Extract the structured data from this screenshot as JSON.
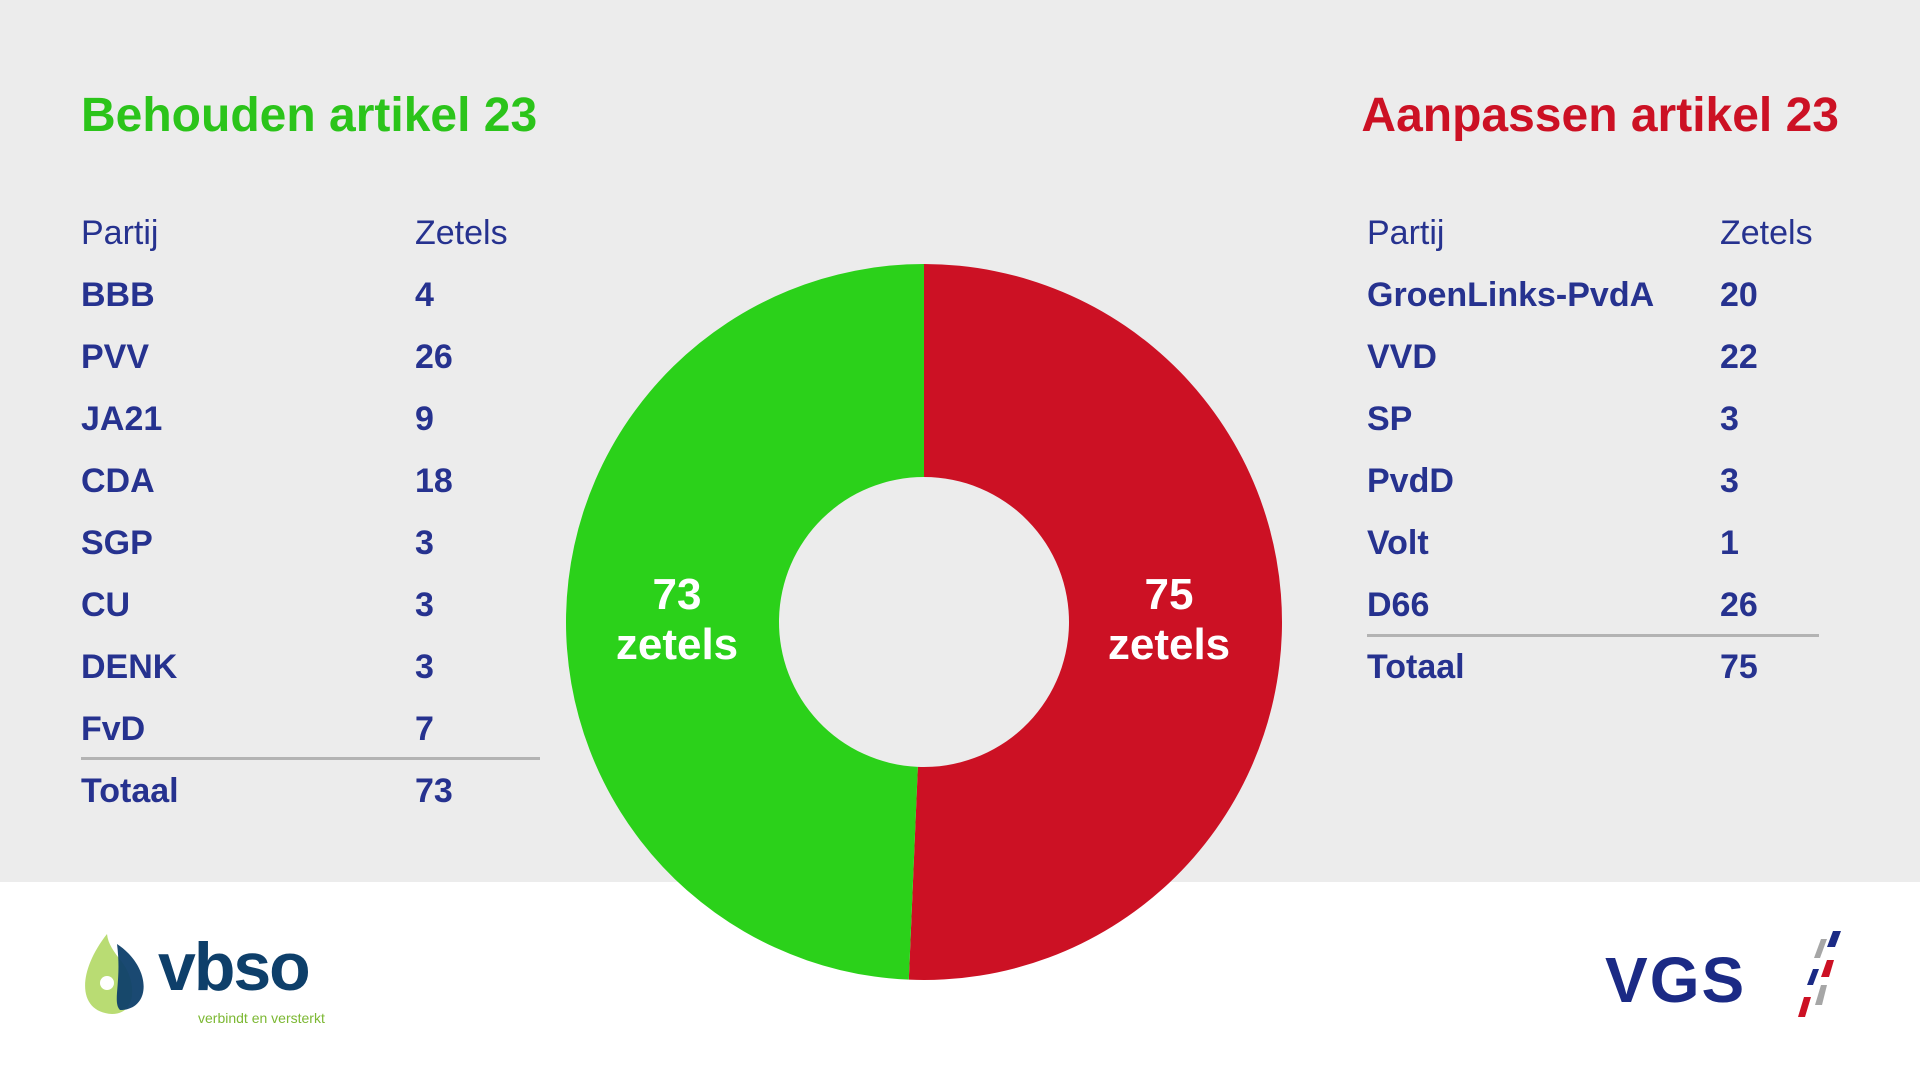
{
  "left": {
    "title": "Behouden artikel 23",
    "color": "#2bd11a",
    "header": {
      "party": "Partij",
      "seats": "Zetels"
    },
    "rows": [
      {
        "party": "BBB",
        "seats": "4"
      },
      {
        "party": "PVV",
        "seats": "26"
      },
      {
        "party": "JA21",
        "seats": "9"
      },
      {
        "party": "CDA",
        "seats": "18"
      },
      {
        "party": "SGP",
        "seats": "3"
      },
      {
        "party": "CU",
        "seats": "3"
      },
      {
        "party": "DENK",
        "seats": "3"
      },
      {
        "party": "FvD",
        "seats": "7"
      }
    ],
    "total": {
      "label": "Totaal",
      "seats": "73"
    }
  },
  "right": {
    "title": "Aanpassen artikel 23",
    "color": "#cc1124",
    "header": {
      "party": "Partij",
      "seats": "Zetels"
    },
    "rows": [
      {
        "party": "GroenLinks-PvdA",
        "seats": "20"
      },
      {
        "party": "VVD",
        "seats": "22"
      },
      {
        "party": "SP",
        "seats": "3"
      },
      {
        "party": "PvdD",
        "seats": "3"
      },
      {
        "party": "Volt",
        "seats": "1"
      },
      {
        "party": "D66",
        "seats": "26"
      }
    ],
    "total": {
      "label": "Totaal",
      "seats": "75"
    }
  },
  "chart_data": {
    "type": "pie",
    "donut": true,
    "categories": [
      "Aanpassen artikel 23",
      "Behouden artikel 23"
    ],
    "values": [
      75,
      73
    ],
    "colors": [
      "#cc1124",
      "#2bd11a"
    ],
    "labels": [
      {
        "num": "75",
        "unit": "zetels"
      },
      {
        "num": "73",
        "unit": "zetels"
      }
    ],
    "start": "top",
    "direction": "clockwise"
  },
  "logos": {
    "vbso": {
      "name": "vbso",
      "tagline": "verbindt en versterkt"
    },
    "vgs": {
      "name": "VGS"
    }
  }
}
